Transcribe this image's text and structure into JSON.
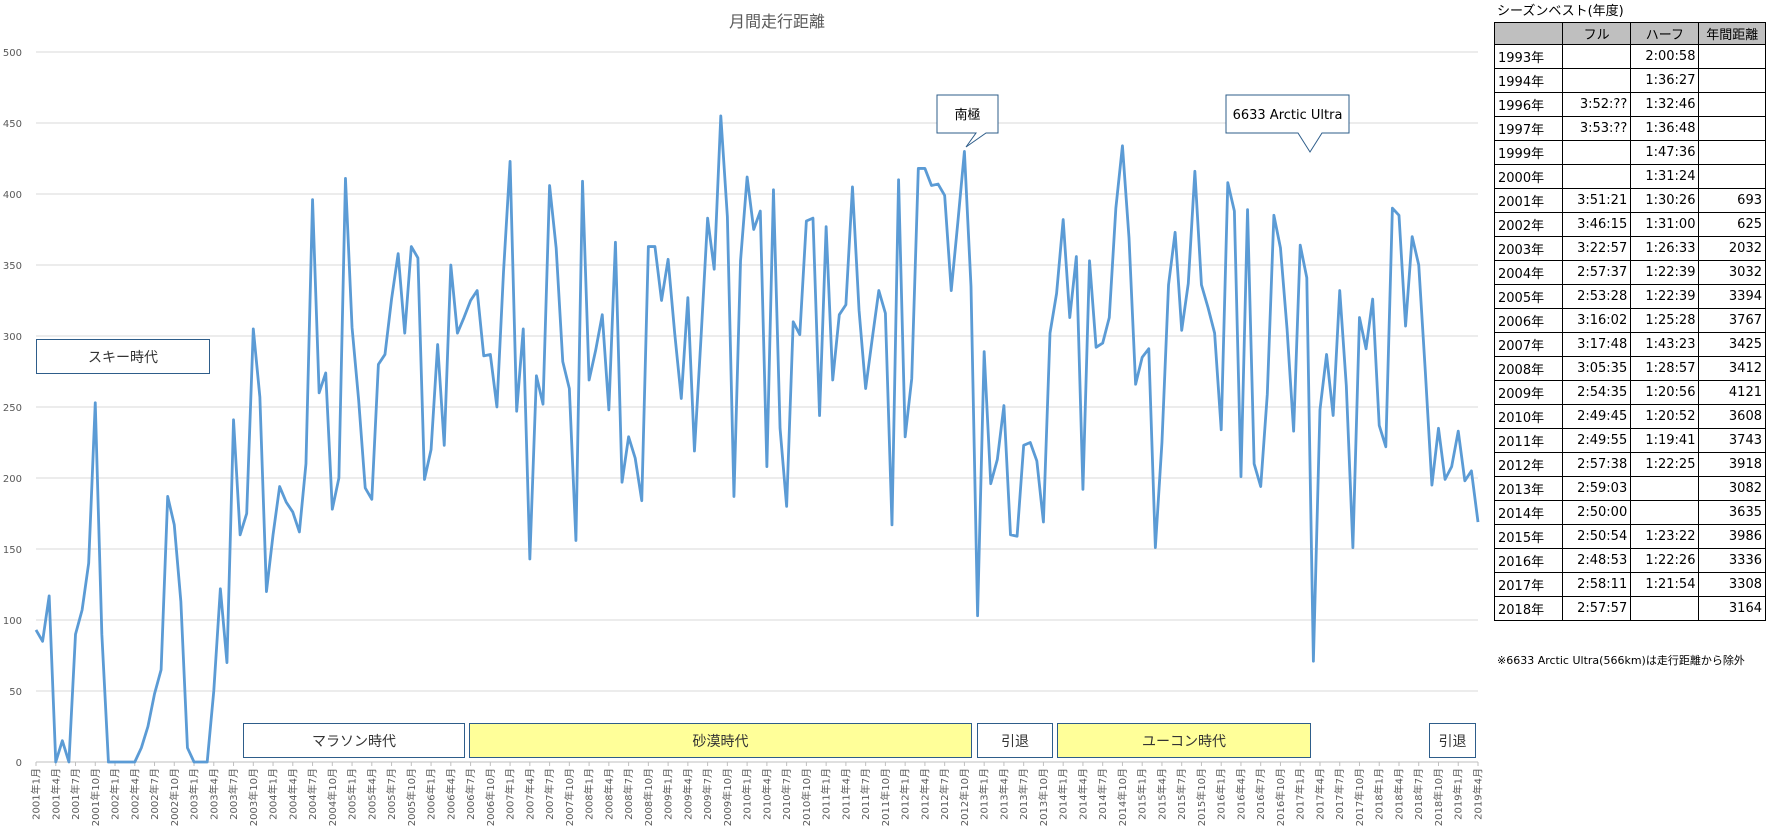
{
  "chart_data": {
    "type": "line",
    "title": "月間走行距離",
    "xlabel": "",
    "ylabel": "",
    "ylim": [
      0,
      500
    ],
    "yticks": [
      0,
      50,
      100,
      150,
      200,
      250,
      300,
      350,
      400,
      450,
      500
    ],
    "grid": true,
    "legend": "none",
    "line_color": "#5b9bd5",
    "x_tick_labels": [
      "2001年1月",
      "2001年4月",
      "2001年7月",
      "2001年10月",
      "2002年1月",
      "2002年4月",
      "2002年7月",
      "2002年10月",
      "2003年1月",
      "2003年4月",
      "2003年7月",
      "2003年10月",
      "2004年1月",
      "2004年4月",
      "2004年7月",
      "2004年10月",
      "2005年1月",
      "2005年4月",
      "2005年7月",
      "2005年10月",
      "2006年1月",
      "2006年4月",
      "2006年7月",
      "2006年10月",
      "2007年1月",
      "2007年4月",
      "2007年7月",
      "2007年10月",
      "2008年1月",
      "2008年4月",
      "2008年7月",
      "2008年10月",
      "2009年1月",
      "2009年4月",
      "2009年7月",
      "2009年10月",
      "2010年1月",
      "2010年4月",
      "2010年7月",
      "2010年10月",
      "2011年1月",
      "2011年4月",
      "2011年7月",
      "2011年10月",
      "2012年1月",
      "2012年4月",
      "2012年7月",
      "2012年10月",
      "2013年1月",
      "2013年4月",
      "2013年7月",
      "2013年10月",
      "2014年1月",
      "2014年4月",
      "2014年7月",
      "2014年10月",
      "2015年1月",
      "2015年4月",
      "2015年7月",
      "2015年10月",
      "2016年1月",
      "2016年4月",
      "2016年7月",
      "2016年10月",
      "2017年1月",
      "2017年4月",
      "2017年7月",
      "2017年10月",
      "2018年1月",
      "2018年4月",
      "2018年7月",
      "2018年10月",
      "2019年1月",
      "2019年4月"
    ],
    "series": [
      {
        "values": [
          93,
          85,
          117,
          0,
          15,
          0,
          90,
          107,
          140,
          253,
          90,
          0,
          0,
          0,
          0,
          0,
          10,
          25,
          48,
          65,
          187,
          167,
          113,
          10,
          0,
          0,
          0,
          50,
          122,
          70,
          241,
          160,
          175,
          305,
          257,
          120,
          160,
          194,
          183,
          176,
          162,
          210,
          396,
          260,
          274,
          178,
          200,
          411,
          306,
          255,
          193,
          185,
          280,
          287,
          326,
          358,
          302,
          363,
          355,
          199,
          220,
          294,
          223,
          350,
          302,
          313,
          325,
          332,
          286,
          287,
          250,
          345,
          423,
          247,
          305,
          143,
          272,
          252,
          406,
          362,
          282,
          263,
          156,
          409,
          269,
          290,
          315,
          248,
          366,
          197,
          229,
          214,
          184,
          363,
          363,
          325,
          354,
          302,
          256,
          327,
          219,
          299,
          383,
          347,
          455,
          384,
          187,
          353,
          412,
          375,
          388,
          208,
          403,
          235,
          180,
          310,
          301,
          381,
          383,
          244,
          377,
          269,
          315,
          322,
          405,
          318,
          263,
          298,
          332,
          316,
          167,
          410,
          229,
          270,
          418,
          418,
          406,
          407,
          399,
          332,
          380,
          430,
          335,
          103,
          289,
          196,
          213,
          251,
          160,
          159,
          223,
          225,
          212,
          169,
          302,
          330,
          382,
          313,
          356,
          192,
          353,
          292,
          295,
          313,
          390,
          434,
          369,
          266,
          285,
          291,
          151,
          225,
          336,
          373,
          304,
          337,
          416,
          336,
          320,
          302,
          234,
          408,
          388,
          201,
          389,
          210,
          194,
          259,
          385,
          362,
          305,
          233,
          364,
          341,
          71,
          248,
          287,
          244,
          332,
          265,
          151,
          313,
          291,
          326,
          237,
          222,
          390,
          385,
          307,
          370,
          350,
          275,
          195,
          235,
          199,
          208,
          233,
          198,
          205,
          169
        ]
      }
    ],
    "annotations": [
      {
        "text": "南極",
        "at": "2012年12月"
      },
      {
        "text": "6633 Arctic Ultra",
        "at": "2017年3月"
      }
    ],
    "periods": [
      {
        "label": "スキー時代",
        "style": "white"
      },
      {
        "label": "マラソン時代",
        "style": "white"
      },
      {
        "label": "砂漠時代",
        "style": "yellow"
      },
      {
        "label": "引退",
        "style": "white"
      },
      {
        "label": "ユーコン時代",
        "style": "yellow"
      },
      {
        "label": "引退",
        "style": "white"
      }
    ]
  },
  "season_best": {
    "title": "シーズンベスト(年度)",
    "headers": [
      "",
      "フル",
      "ハーフ",
      "年間距離"
    ],
    "rows": [
      [
        "1993年",
        "",
        "2:00:58",
        ""
      ],
      [
        "1994年",
        "",
        "1:36:27",
        ""
      ],
      [
        "1996年",
        "3:52:??",
        "1:32:46",
        ""
      ],
      [
        "1997年",
        "3:53:??",
        "1:36:48",
        ""
      ],
      [
        "1999年",
        "",
        "1:47:36",
        ""
      ],
      [
        "2000年",
        "",
        "1:31:24",
        ""
      ],
      [
        "2001年",
        "3:51:21",
        "1:30:26",
        "693"
      ],
      [
        "2002年",
        "3:46:15",
        "1:31:00",
        "625"
      ],
      [
        "2003年",
        "3:22:57",
        "1:26:33",
        "2032"
      ],
      [
        "2004年",
        "2:57:37",
        "1:22:39",
        "3032"
      ],
      [
        "2005年",
        "2:53:28",
        "1:22:39",
        "3394"
      ],
      [
        "2006年",
        "3:16:02",
        "1:25:28",
        "3767"
      ],
      [
        "2007年",
        "3:17:48",
        "1:43:23",
        "3425"
      ],
      [
        "2008年",
        "3:05:35",
        "1:28:57",
        "3412"
      ],
      [
        "2009年",
        "2:54:35",
        "1:20:56",
        "4121"
      ],
      [
        "2010年",
        "2:49:45",
        "1:20:52",
        "3608"
      ],
      [
        "2011年",
        "2:49:55",
        "1:19:41",
        "3743"
      ],
      [
        "2012年",
        "2:57:38",
        "1:22:25",
        "3918"
      ],
      [
        "2013年",
        "2:59:03",
        "",
        "3082"
      ],
      [
        "2014年",
        "2:50:00",
        "",
        "3635"
      ],
      [
        "2015年",
        "2:50:54",
        "1:23:22",
        "3986"
      ],
      [
        "2016年",
        "2:48:53",
        "1:22:26",
        "3336"
      ],
      [
        "2017年",
        "2:58:11",
        "1:21:54",
        "3308"
      ],
      [
        "2018年",
        "2:57:57",
        "",
        "3164"
      ]
    ],
    "footnote": "※6633 Arctic Ultra(566km)は走行距離から除外"
  }
}
